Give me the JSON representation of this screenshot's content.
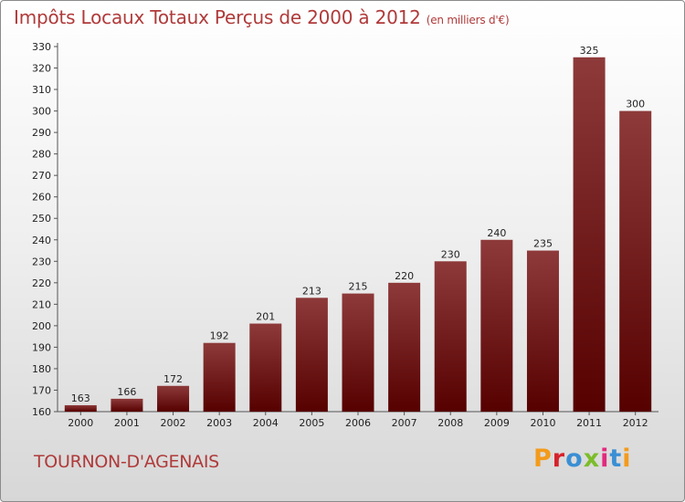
{
  "page": {
    "title": "Impôts Locaux Totaux Perçus de 2000 à 2012",
    "title_unit": "(en milliers d'€)",
    "commune": "TOURNON-D'AGENAIS",
    "brand": "Proxiti",
    "brand_colors": [
      "#f39b1c",
      "#d6222a",
      "#3a8fd4",
      "#7cbd2a",
      "#e22a7d",
      "#3a8fd4",
      "#f39b1c"
    ]
  },
  "chart_data": {
    "type": "bar",
    "title": "Impôts Locaux Totaux Perçus de 2000 à 2012",
    "ylabel": "en milliers d'€",
    "xlabel": "",
    "categories": [
      "2000",
      "2001",
      "2002",
      "2003",
      "2004",
      "2005",
      "2006",
      "2007",
      "2008",
      "2009",
      "2010",
      "2011",
      "2012"
    ],
    "values": [
      163,
      166,
      172,
      192,
      201,
      213,
      215,
      220,
      230,
      240,
      235,
      325,
      300
    ],
    "ylim": [
      160,
      330
    ],
    "ytick_step": 10,
    "grid": false,
    "bar_color_top": "#8e3a3a",
    "bar_color_bottom": "#560000"
  }
}
